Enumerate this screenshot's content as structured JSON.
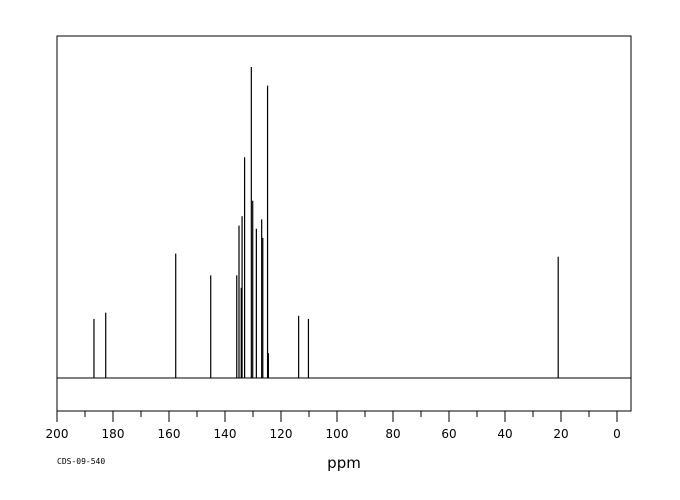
{
  "chart_data": {
    "type": "line",
    "xlabel": "ppm",
    "ylabel": "",
    "xlim": [
      200,
      0
    ],
    "x_ticks": [
      "200",
      "180",
      "160",
      "140",
      "120",
      "100",
      "80",
      "60",
      "40",
      "20",
      "0"
    ],
    "grid": false,
    "peaks": [
      {
        "ppm": 186.8,
        "intensity": 0.19
      },
      {
        "ppm": 182.6,
        "intensity": 0.21
      },
      {
        "ppm": 157.6,
        "intensity": 0.4
      },
      {
        "ppm": 145.1,
        "intensity": 0.33
      },
      {
        "ppm": 135.8,
        "intensity": 0.33
      },
      {
        "ppm": 135.0,
        "intensity": 0.49
      },
      {
        "ppm": 134.2,
        "intensity": 0.29
      },
      {
        "ppm": 133.9,
        "intensity": 0.52
      },
      {
        "ppm": 133.0,
        "intensity": 0.71
      },
      {
        "ppm": 130.6,
        "intensity": 1.0
      },
      {
        "ppm": 130.1,
        "intensity": 0.57
      },
      {
        "ppm": 128.8,
        "intensity": 0.48
      },
      {
        "ppm": 126.9,
        "intensity": 0.51
      },
      {
        "ppm": 126.5,
        "intensity": 0.45
      },
      {
        "ppm": 124.8,
        "intensity": 0.94
      },
      {
        "ppm": 124.5,
        "intensity": 0.08
      },
      {
        "ppm": 113.7,
        "intensity": 0.2
      },
      {
        "ppm": 110.2,
        "intensity": 0.19
      },
      {
        "ppm": 21.0,
        "intensity": 0.39
      }
    ]
  },
  "footer": {
    "sample_code": "CDS-09-540"
  }
}
